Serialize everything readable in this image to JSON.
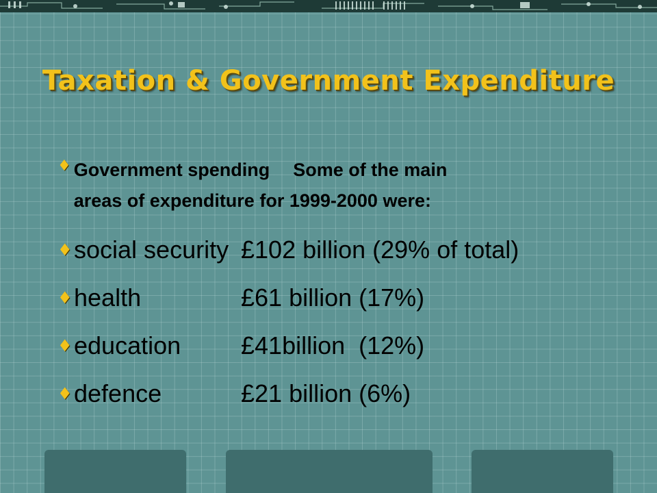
{
  "slide": {
    "title": "Taxation & Government Expenditure",
    "intro": {
      "label": "Government spending",
      "line1": "Some of the main",
      "line2": "areas of expenditure for 1999-2000 were:"
    },
    "items": [
      {
        "name": "social security",
        "value": "£102 billion (29% of total)"
      },
      {
        "name": "health",
        "value": "£61 billion (17%)"
      },
      {
        "name": "education",
        "value": "£41billion  (12%)"
      },
      {
        "name": "defence",
        "value": "£21 billion (6%)"
      }
    ],
    "bullet_glyph": "♦",
    "colors": {
      "background": "#5e9494",
      "title": "#f2c21b",
      "bullet": "#f2c21b",
      "text": "#000000",
      "footer_box": "#3f6d6d"
    }
  }
}
